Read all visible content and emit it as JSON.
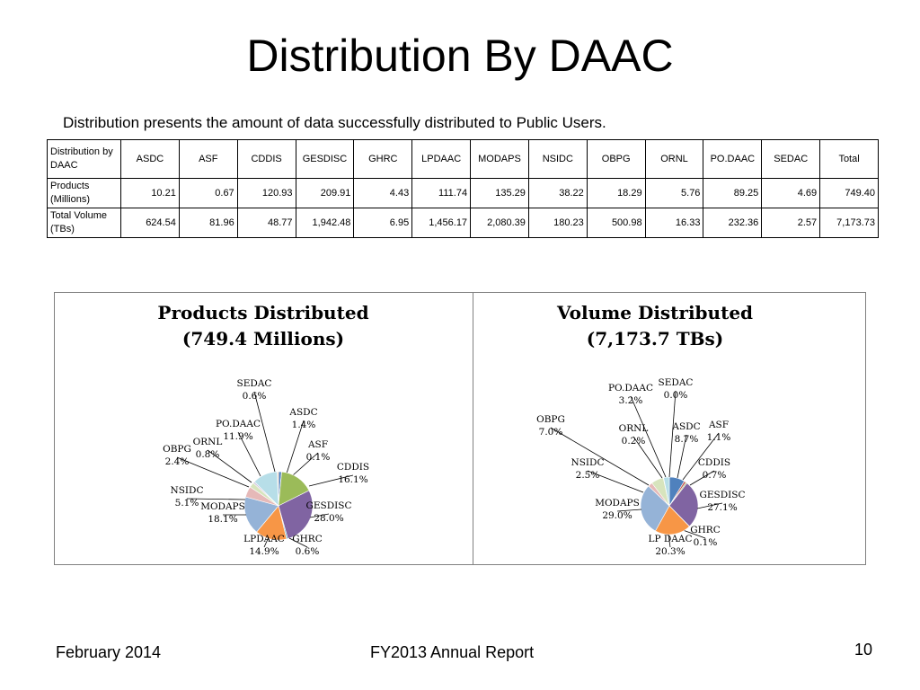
{
  "title": "Distribution By DAAC",
  "subtitle": "Distribution presents the amount of data successfully distributed to Public Users.",
  "table": {
    "corner": "Distribution by DAAC",
    "columns": [
      "ASDC",
      "ASF",
      "CDDIS",
      "GESDISC",
      "GHRC",
      "LPDAAC",
      "MODAPS",
      "NSIDC",
      "OBPG",
      "ORNL",
      "PO.DAAC",
      "SEDAC",
      "Total"
    ],
    "rows": [
      {
        "label": "Products (Millions)",
        "values": [
          "10.21",
          "0.67",
          "120.93",
          "209.91",
          "4.43",
          "111.74",
          "135.29",
          "38.22",
          "18.29",
          "5.76",
          "89.25",
          "4.69",
          "749.40"
        ]
      },
      {
        "label": "Total Volume (TBs)",
        "values": [
          "624.54",
          "81.96",
          "48.77",
          "1,942.48",
          "6.95",
          "1,456.17",
          "2,080.39",
          "180.23",
          "500.98",
          "16.33",
          "232.36",
          "2.57",
          "7,173.73"
        ]
      }
    ]
  },
  "chart_data": [
    {
      "type": "pie",
      "title": "Products Distributed",
      "subtitle": "(749.4 Millions)",
      "slices": [
        {
          "name": "ASDC",
          "value": 1.4,
          "label": "1.4%"
        },
        {
          "name": "ASF",
          "value": 0.1,
          "label": "0.1%"
        },
        {
          "name": "CDDIS",
          "value": 16.1,
          "label": "16.1%"
        },
        {
          "name": "GESDISC",
          "value": 28.0,
          "label": "28.0%"
        },
        {
          "name": "GHRC",
          "value": 0.6,
          "label": "0.6%"
        },
        {
          "name": "LPDAAC",
          "value": 14.9,
          "label": "14.9%"
        },
        {
          "name": "MODAPS",
          "value": 18.1,
          "label": "18.1%"
        },
        {
          "name": "NSIDC",
          "value": 5.1,
          "label": "5.1%"
        },
        {
          "name": "OBPG",
          "value": 2.4,
          "label": "2.4%"
        },
        {
          "name": "ORNL",
          "value": 0.8,
          "label": "0.8%"
        },
        {
          "name": "PO.DAAC",
          "value": 11.9,
          "label": "11.9%"
        },
        {
          "name": "SEDAC",
          "value": 0.6,
          "label": "0.6%"
        }
      ]
    },
    {
      "type": "pie",
      "title": "Volume Distributed",
      "subtitle": "(7,173.7 TBs)",
      "slices": [
        {
          "name": "ASDC",
          "value": 8.7,
          "label": "8.7%"
        },
        {
          "name": "ASF",
          "value": 1.1,
          "label": "1.1%"
        },
        {
          "name": "CDDIS",
          "value": 0.7,
          "label": "0.7%"
        },
        {
          "name": "GESDISC",
          "value": 27.1,
          "label": "27.1%"
        },
        {
          "name": "GHRC",
          "value": 0.1,
          "label": "0.1%"
        },
        {
          "name": "LP DAAC",
          "value": 20.3,
          "label": "20.3%"
        },
        {
          "name": "MODAPS",
          "value": 29.0,
          "label": "29.0%"
        },
        {
          "name": "NSIDC",
          "value": 2.5,
          "label": "2.5%"
        },
        {
          "name": "OBPG",
          "value": 7.0,
          "label": "7.0%"
        },
        {
          "name": "ORNL",
          "value": 0.2,
          "label": "0.2%"
        },
        {
          "name": "PO.DAAC",
          "value": 3.2,
          "label": "3.2%"
        },
        {
          "name": "SEDAC",
          "value": 0.0,
          "label": "0.0%"
        }
      ]
    }
  ],
  "slice_colors": [
    "#4f81bd",
    "#c0504d",
    "#9bbb59",
    "#8064a2",
    "#4bacc6",
    "#f79646",
    "#95b3d7",
    "#e6b9b8",
    "#d7e4bd",
    "#ccc1da",
    "#b7dee8",
    "#fcd5b5"
  ],
  "footer": {
    "date": "February 2014",
    "report": "FY2013 Annual Report",
    "page": "10"
  }
}
